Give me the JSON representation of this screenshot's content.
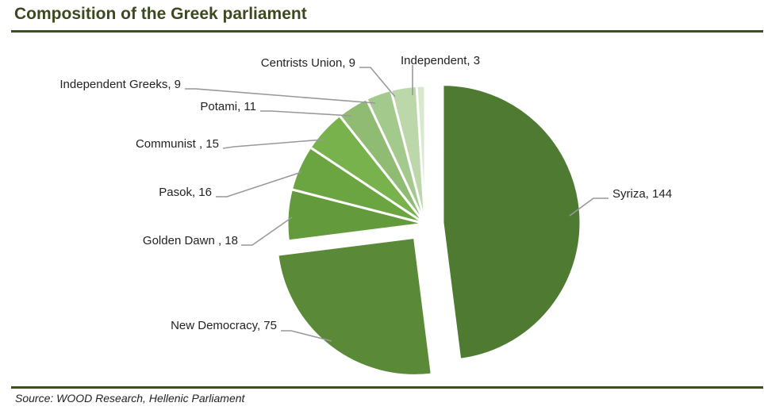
{
  "header": {
    "title": "Composition of the Greek parliament"
  },
  "footer": {
    "source": "Source: WOOD Research, Hellenic Parliament"
  },
  "chart_data": {
    "type": "pie",
    "title": "Composition of the Greek parliament",
    "slices": [
      {
        "name": "Syriza",
        "value": 144,
        "label": "Syriza, 144",
        "color": "#4e7a31"
      },
      {
        "name": "New Democracy",
        "value": 75,
        "label": "New Democracy, 75",
        "color": "#5a8a37"
      },
      {
        "name": "Golden Dawn",
        "value": 18,
        "label": "Golden Dawn , 18",
        "color": "#639a3b"
      },
      {
        "name": "Pasok",
        "value": 16,
        "label": "Pasok, 16",
        "color": "#6ba542"
      },
      {
        "name": "Communist",
        "value": 15,
        "label": "Communist , 15",
        "color": "#78b24c"
      },
      {
        "name": "Potami",
        "value": 11,
        "label": "Potami, 11",
        "color": "#8fbb72"
      },
      {
        "name": "Independent Greeks",
        "value": 9,
        "label": "Independent Greeks, 9",
        "color": "#a4c98c"
      },
      {
        "name": "Centrists Union",
        "value": 9,
        "label": "Centrists Union, 9",
        "color": "#bcd7aa"
      },
      {
        "name": "Independent",
        "value": 3,
        "label": "Independent, 3",
        "color": "#d7e8cd"
      }
    ],
    "exploded": [
      "Syriza",
      "New Democracy"
    ],
    "colors": {
      "leader_line": "#999999",
      "title": "#3b4a1e",
      "rule": "#3d4f1f"
    }
  }
}
